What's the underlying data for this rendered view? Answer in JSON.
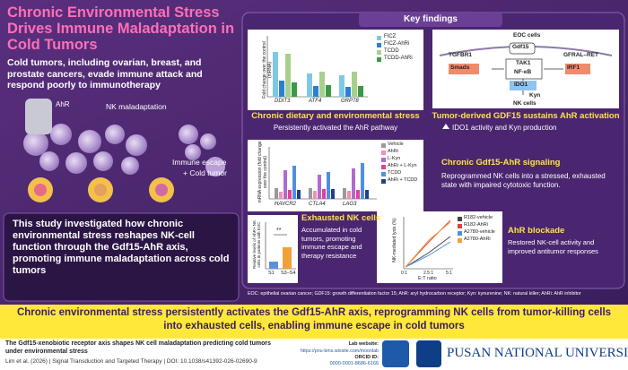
{
  "header": {
    "title": "Chronic Environmental Stress Drives Immune Maladaptation in Cold Tumors",
    "subtitle": "Cold tumors, including ovarian, breast, and prostate cancers, evade immune attack and respond poorly to immunotherapy"
  },
  "illustration": {
    "labels": [
      "AhR",
      "NK maladaptation",
      "Immune escape",
      "+ Cold tumor"
    ]
  },
  "study_box": {
    "text": "This study investigated how chronic environmental stress reshapes NK-cell function through the Gdf15-AhR axis, promoting immune maladaptation across cold tumors"
  },
  "key_findings": {
    "title": "Key findings",
    "panels": [
      {
        "heading": "Chronic dietary and environmental stress",
        "text": "Persistently activated the AhR pathway",
        "figure": {
          "legend": [
            "FICZ",
            "FICZ-AhRi",
            "TCDD",
            "TCDD-AhRi"
          ],
          "y_label": "Fold change over the control (mRNA)",
          "categories": [
            "DDIT3",
            "ATF4",
            "GRP78"
          ]
        }
      },
      {
        "heading": "Tumor-derived GDF15 sustains AhR activation",
        "text": "IDO1 activity and Kyn production",
        "figure": {
          "labels": [
            "EOC cells",
            "Gdf15",
            "TGFBR1",
            "GFRAL–RET",
            "Smads",
            "TAK1",
            "NF-κB",
            "IRF1",
            "IDO1",
            "Kyn",
            "NK cells"
          ]
        }
      },
      {
        "heading": "Chronic Gdf15-AhR signaling",
        "text": "Reprogrammed NK cells into a stressed, exhausted state with impaired cytotoxic function.",
        "figure": {
          "legend": [
            "Vehicle",
            "AhRi",
            "L-Kyn",
            "AhRi + L-Kyn",
            "TCDD",
            "AhRi + TCDD"
          ],
          "y_label": "mRNA expression (fold change over the control)",
          "categories": [
            "HAVCR2",
            "CTLA4",
            "LAG3"
          ]
        }
      },
      {
        "heading": "Exhausted NK cells",
        "text": "Accumulated in cold tumors, promoting immune escape and therapy resistance",
        "figure": {
          "y_label": "Relative levels of AhR+ NK cells in patients with EOC",
          "categories": [
            "S1",
            "S3–S4"
          ],
          "significance": "**"
        }
      },
      {
        "heading": "AhR blockade",
        "text": "Restored NK-cell activity and improved antitumor responses",
        "figure": {
          "legend": [
            "R182-vehicle",
            "R182-AhRi",
            "A2780-vehicle",
            "A2780-AhRi"
          ],
          "y_label": "NK-mediated lysis (%)",
          "x_label": "E:T ratio",
          "xticks": [
            "0:1",
            "2.5:1",
            "5:1"
          ]
        }
      }
    ]
  },
  "footnote": "EOC: epithelial ovarian cancer; GDF15: growth differentiation factor 15; AhR: aryl hydrocarbon receptor; Kyn: kynurenine; NK: natural killer; AhRi: AhR inhibitor",
  "conclusion": "Chronic environmental stress persistently activates the Gdf15-AhR axis, reprogramming NK cells from tumor-killing cells into exhausted cells, enabling immune escape in cold tumors",
  "footer": {
    "citation_title": "The Gdf15-xenobiotic receptor axis shapes NK cell maladaptation predicting cold tumors under environmental stress",
    "citation_line": "Lim et al. (2026)  |  Signal Transduction and Targeted Therapy  |  DOI: 10.1038/s41392-026-02690-9",
    "lab_label": "Lab website:",
    "lab_url": "https://pnu-bms.wixsite.com/moonlab",
    "orcid_label": "ORCID ID:",
    "orcid": "0000-0001-8686-6166",
    "university": "PUSAN NATIONAL UNIVERSITY"
  }
}
